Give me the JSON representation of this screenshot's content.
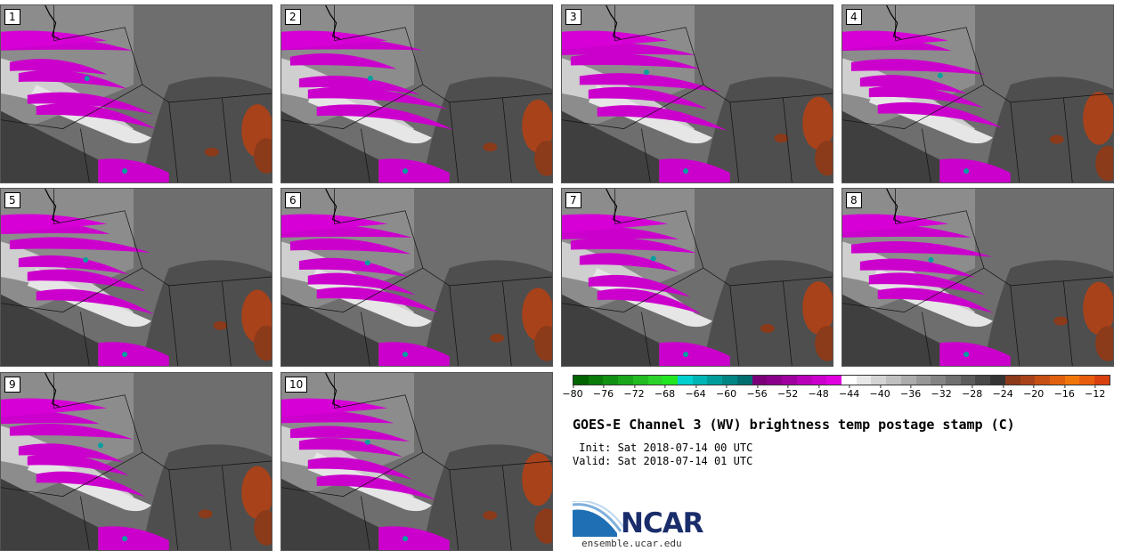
{
  "title": "GOES-E Channel 3 (WV) brightness temp postage stamp (C)",
  "init": " Init: Sat 2018-07-14 00 UTC",
  "valid": "Valid: Sat 2018-07-14 01 UTC",
  "logo": {
    "text": "NCAR",
    "site": "ensemble.ucar.edu",
    "icon": "ncar-arc-logo-icon"
  },
  "panels": [
    "1",
    "2",
    "3",
    "4",
    "5",
    "6",
    "7",
    "8",
    "9",
    "10"
  ],
  "colorbar": {
    "ticks": [
      "−80",
      "−76",
      "−72",
      "−68",
      "−64",
      "−60",
      "−56",
      "−52",
      "−48",
      "−44",
      "−40",
      "−36",
      "−32",
      "−28",
      "−24",
      "−20",
      "−16",
      "−12"
    ],
    "range": [
      -80,
      -10
    ],
    "colors": [
      "#006400",
      "#0a7a0a",
      "#129012",
      "#1aa61a",
      "#22bc22",
      "#2ad22a",
      "#22e622",
      "#00cfcf",
      "#00b5b5",
      "#009c9c",
      "#008585",
      "#006e6e",
      "#7a007a",
      "#8a008a",
      "#a000a0",
      "#b800b8",
      "#cc00cc",
      "#e000e0",
      "#ffffff",
      "#e8e8e8",
      "#d4d4d4",
      "#c0c0c0",
      "#acacac",
      "#989898",
      "#848484",
      "#707070",
      "#5c5c5c",
      "#484848",
      "#343434",
      "#8b3a1a",
      "#a8421a",
      "#c65014",
      "#e0600e",
      "#f0760a",
      "#e85c0e",
      "#d84010"
    ]
  }
}
